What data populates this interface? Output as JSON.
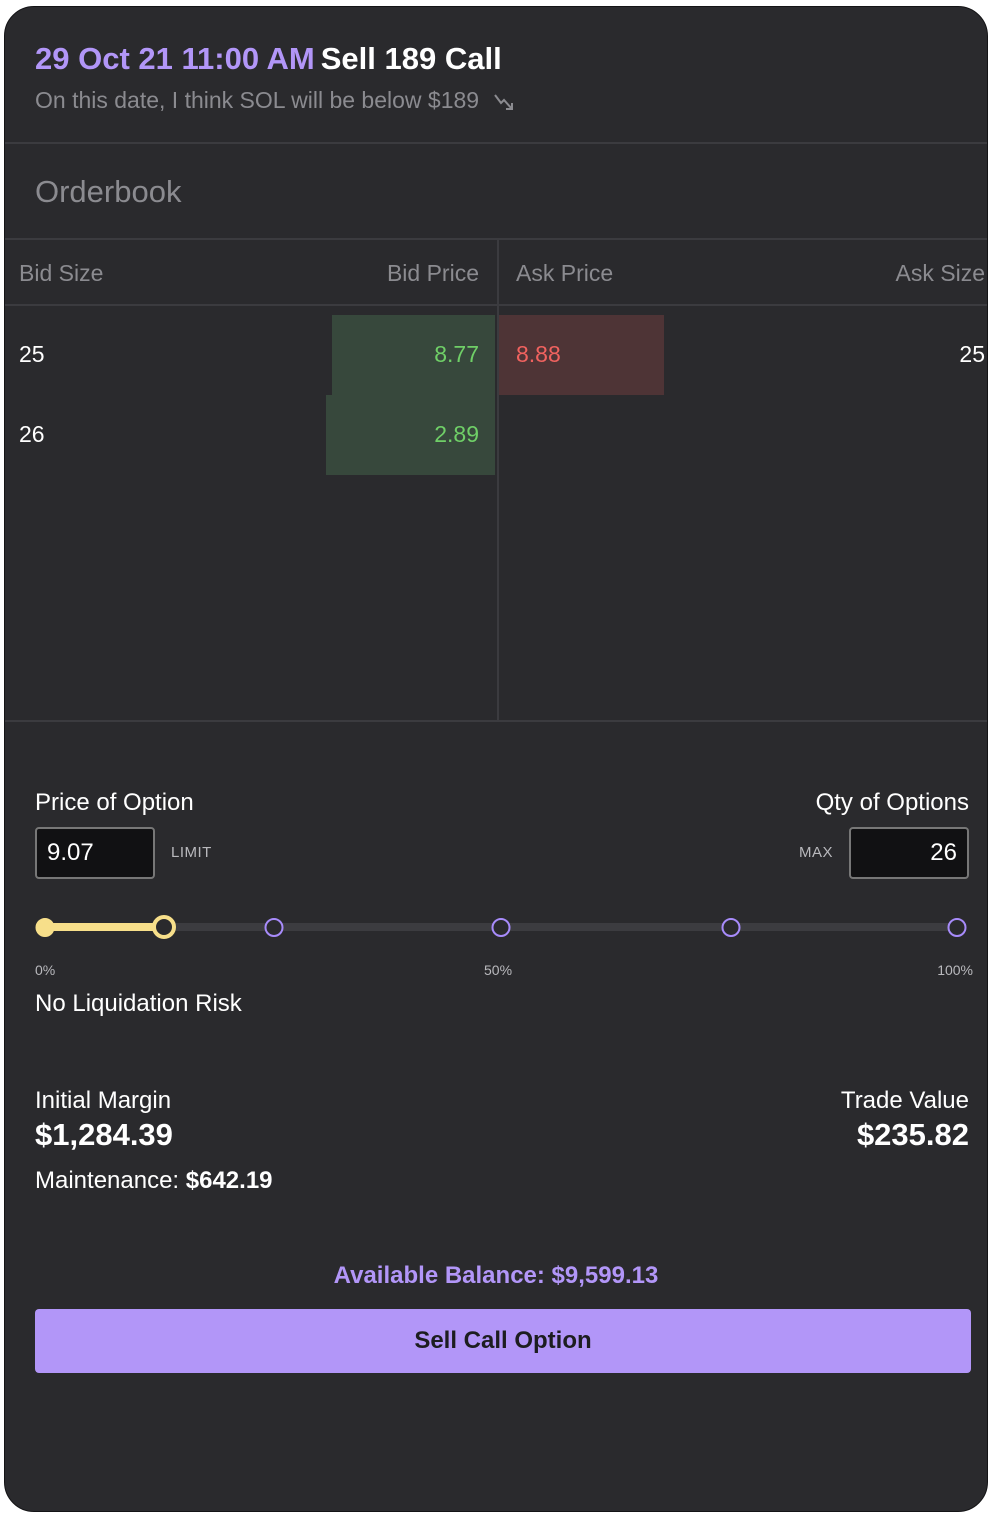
{
  "header": {
    "date": "29 Oct 21 11:00 AM",
    "action": "Sell 189 Call",
    "subtitle": "On this date, I think SOL will be below $189",
    "trend_icon": "trending-down-icon"
  },
  "orderbook": {
    "title": "Orderbook",
    "columns": {
      "bid_size": "Bid Size",
      "bid_price": "Bid Price",
      "ask_price": "Ask Price",
      "ask_size": "Ask Size"
    },
    "rows": [
      {
        "bid_size": "25",
        "bid_price": "8.77",
        "ask_price": "8.88",
        "ask_size": "25"
      },
      {
        "bid_size": "26",
        "bid_price": "2.89",
        "ask_price": "",
        "ask_size": ""
      }
    ],
    "colors": {
      "bid": "#6fcf67",
      "ask": "#f0625f",
      "bid_bg": "#37483c",
      "ask_bg": "#4e3436"
    }
  },
  "form": {
    "price_label": "Price of Option",
    "price_value": "9.07",
    "limit_tag": "LIMIT",
    "qty_label": "Qty of Options",
    "qty_value": "26",
    "max_tag": "MAX"
  },
  "slider": {
    "value_percent": 13,
    "ticks": [
      "0%",
      "50%",
      "100%"
    ],
    "accent": "#f7df8a"
  },
  "risk": {
    "label": "No Liquidation Risk"
  },
  "margin": {
    "initial_label": "Initial Margin",
    "initial_value": "$1,284.39",
    "maintenance_label": "Maintenance:",
    "maintenance_value": "$642.19"
  },
  "trade": {
    "label": "Trade Value",
    "value": "$235.82"
  },
  "balance": {
    "text": "Available Balance: $9,599.13"
  },
  "submit": {
    "label": "Sell Call Option",
    "color": "#b296f8"
  }
}
